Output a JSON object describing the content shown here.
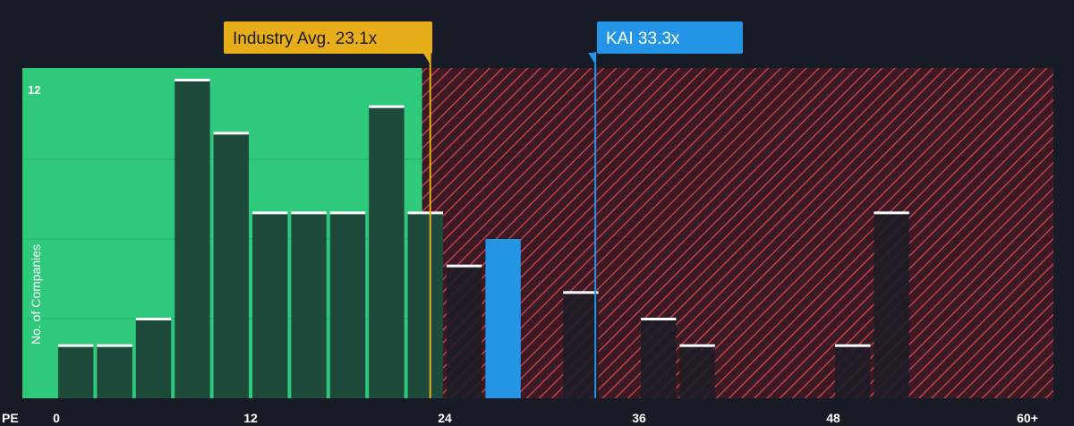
{
  "chart_data": {
    "type": "bar",
    "x_axis_label": "PE",
    "y_axis_label": "No. of Companies",
    "x_ticks": [
      {
        "value": 0,
        "label": "0"
      },
      {
        "value": 12,
        "label": "12"
      },
      {
        "value": 24,
        "label": "24"
      },
      {
        "value": 36,
        "label": "36"
      },
      {
        "value": 48,
        "label": "48"
      },
      {
        "value": 60,
        "label": "60+"
      }
    ],
    "y_ticks": [
      {
        "value": 12,
        "label": "12"
      }
    ],
    "xlim": [
      0,
      61.5
    ],
    "ylim": [
      0,
      12
    ],
    "bin_width": 2.4,
    "bins": [
      {
        "start": 0,
        "count": 2
      },
      {
        "start": 2.4,
        "count": 2
      },
      {
        "start": 4.8,
        "count": 3
      },
      {
        "start": 7.2,
        "count": 12
      },
      {
        "start": 9.6,
        "count": 10
      },
      {
        "start": 12,
        "count": 7
      },
      {
        "start": 14.4,
        "count": 7
      },
      {
        "start": 16.8,
        "count": 7
      },
      {
        "start": 19.2,
        "count": 11
      },
      {
        "start": 21.6,
        "count": 7
      },
      {
        "start": 24,
        "count": 5
      },
      {
        "start": 26.4,
        "count": 6,
        "highlight": true
      },
      {
        "start": 28.8,
        "count": 0
      },
      {
        "start": 31.2,
        "count": 4
      },
      {
        "start": 33.6,
        "count": 0
      },
      {
        "start": 36,
        "count": 3
      },
      {
        "start": 38.4,
        "count": 2
      },
      {
        "start": 40.8,
        "count": 0
      },
      {
        "start": 43.2,
        "count": 0
      },
      {
        "start": 45.6,
        "count": 0
      },
      {
        "start": 48,
        "count": 2
      },
      {
        "start": 50.4,
        "count": 7
      }
    ],
    "fair_range_max": 22.6,
    "industry_avg": {
      "value": 23.1,
      "label": "Industry Avg. 23.1x"
    },
    "company": {
      "value": 33.3,
      "label": "KAI 33.3x"
    },
    "colors": {
      "background": "#161b25",
      "fair_zone": "#2ec97a",
      "over_zone": "#3a1a24",
      "over_hatch": "#c0404a",
      "bar": "#1e4a3c",
      "bar_over": "#1e1c26",
      "bar_top": "#ffffff",
      "industry": "#e8ae1a",
      "company": "#2394e6"
    }
  }
}
